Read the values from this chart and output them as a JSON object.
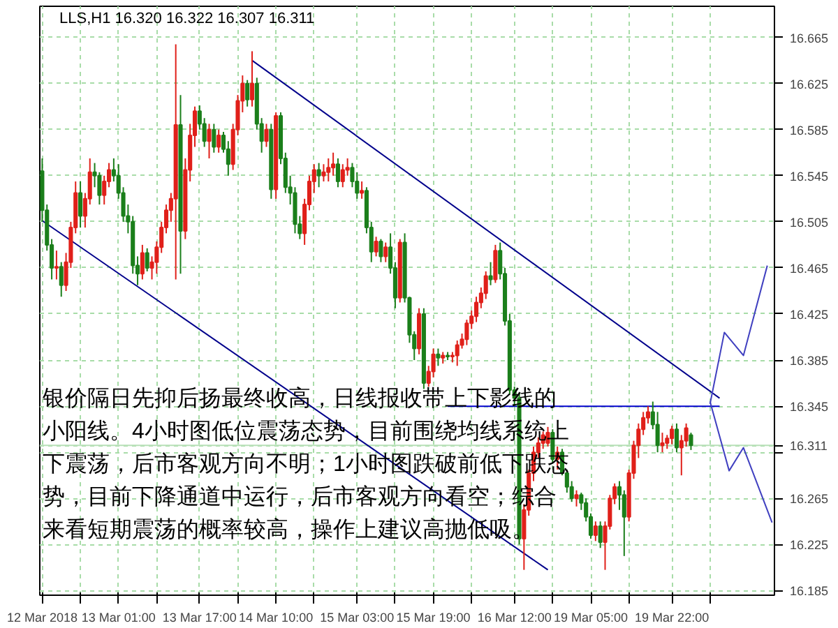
{
  "chart_data": {
    "type": "candlestick",
    "title": "LLS,H1  16.320 16.322 16.307 16.311",
    "annotations": [
      "银价隔日先抑后扬最终收高，日线报收带上下影线的",
      "小阳线。4小时图低位震荡态势，目前围绕均线系统上",
      "下震荡，后市客观方向不明；1小时图跌破前低下跌态",
      "势，目前下降通道中运行，后市客观方向看空；综合",
      "来看短期震荡的概率较高，操作上建议高抛低吸。"
    ],
    "categories": [
      "12 Mar 2018",
      null,
      null,
      null,
      null,
      null,
      null,
      null,
      null,
      null,
      null,
      null,
      null,
      null,
      null,
      null,
      "13 Mar 01:00",
      null,
      null,
      null,
      null,
      null,
      null,
      null,
      null,
      null,
      null,
      null,
      null,
      null,
      null,
      null,
      null,
      "13 Mar 17:00",
      null,
      null,
      null,
      null,
      null,
      null,
      null,
      null,
      null,
      null,
      null,
      null,
      null,
      null,
      null,
      "14 Mar 10:00",
      null,
      null,
      null,
      null,
      null,
      null,
      null,
      null,
      null,
      null,
      null,
      null,
      null,
      null,
      null,
      null,
      "15 Mar 03:00",
      null,
      null,
      null,
      null,
      null,
      null,
      null,
      null,
      null,
      null,
      null,
      null,
      null,
      null,
      null,
      "15 Mar 19:00",
      null,
      null,
      null,
      null,
      null,
      null,
      null,
      null,
      null,
      null,
      null,
      null,
      null,
      null,
      null,
      null,
      "16 Mar 12:00",
      null,
      null,
      null,
      null,
      null,
      null,
      null,
      null,
      null,
      null,
      null,
      null,
      null,
      null,
      null,
      "19 Mar 05:00",
      null,
      null,
      null,
      null,
      null,
      null,
      null,
      null,
      null,
      null,
      null,
      null,
      null,
      null,
      null,
      null,
      "19 Mar 22:00",
      null,
      null,
      null,
      null,
      null,
      null,
      null,
      null,
      null,
      null,
      null,
      null,
      null,
      null,
      null,
      null,
      null,
      null,
      null,
      null,
      null
    ],
    "ohlc": [
      [
        16.549,
        16.56,
        16.505,
        16.515
      ],
      [
        16.515,
        16.52,
        16.48,
        16.485
      ],
      [
        16.485,
        16.49,
        16.455,
        16.465
      ],
      [
        16.465,
        16.48,
        16.455,
        16.466
      ],
      [
        16.466,
        16.47,
        16.44,
        16.45
      ],
      [
        16.45,
        16.478,
        16.445,
        16.47
      ],
      [
        16.47,
        16.505,
        16.465,
        16.5
      ],
      [
        16.5,
        16.54,
        16.495,
        16.53
      ],
      [
        16.53,
        16.54,
        16.5,
        16.51
      ],
      [
        16.51,
        16.53,
        16.5,
        16.525
      ],
      [
        16.525,
        16.56,
        16.52,
        16.548
      ],
      [
        16.548,
        16.556,
        16.535,
        16.545
      ],
      [
        16.545,
        16.548,
        16.52,
        16.528
      ],
      [
        16.528,
        16.545,
        16.52,
        16.54
      ],
      [
        16.54,
        16.556,
        16.535,
        16.55
      ],
      [
        16.55,
        16.56,
        16.54,
        16.545
      ],
      [
        16.545,
        16.555,
        16.525,
        16.53
      ],
      [
        16.53,
        16.535,
        16.505,
        16.51
      ],
      [
        16.51,
        16.52,
        16.495,
        16.505
      ],
      [
        16.505,
        16.51,
        16.46,
        16.467
      ],
      [
        16.467,
        16.475,
        16.45,
        16.46
      ],
      [
        16.46,
        16.485,
        16.455,
        16.478
      ],
      [
        16.478,
        16.482,
        16.462,
        16.465
      ],
      [
        16.465,
        16.475,
        16.455,
        16.47
      ],
      [
        16.47,
        16.488,
        16.46,
        16.483
      ],
      [
        16.483,
        16.505,
        16.478,
        16.5
      ],
      [
        16.5,
        16.52,
        16.495,
        16.515
      ],
      [
        16.515,
        16.53,
        16.505,
        16.525
      ],
      [
        16.525,
        16.659,
        16.455,
        16.589
      ],
      [
        16.589,
        16.615,
        16.46,
        16.497
      ],
      [
        16.497,
        16.56,
        16.49,
        16.55
      ],
      [
        16.55,
        16.59,
        16.54,
        16.58
      ],
      [
        16.58,
        16.605,
        16.57,
        16.601
      ],
      [
        16.601,
        16.606,
        16.585,
        16.59
      ],
      [
        16.59,
        16.595,
        16.57,
        16.575
      ],
      [
        16.575,
        16.59,
        16.56,
        16.585
      ],
      [
        16.585,
        16.59,
        16.565,
        16.57
      ],
      [
        16.57,
        16.585,
        16.565,
        16.58
      ],
      [
        16.58,
        16.583,
        16.565,
        16.568
      ],
      [
        16.568,
        16.575,
        16.545,
        16.555
      ],
      [
        16.555,
        16.59,
        16.55,
        16.585
      ],
      [
        16.585,
        16.615,
        16.58,
        16.61
      ],
      [
        16.61,
        16.632,
        16.6,
        16.625
      ],
      [
        16.625,
        16.628,
        16.605,
        16.611
      ],
      [
        16.611,
        16.653,
        16.605,
        16.625
      ],
      [
        16.625,
        16.63,
        16.585,
        16.59
      ],
      [
        16.59,
        16.595,
        16.565,
        16.575
      ],
      [
        16.575,
        16.59,
        16.57,
        16.585
      ],
      [
        16.585,
        16.59,
        16.525,
        16.533
      ],
      [
        16.533,
        16.6,
        16.525,
        16.597
      ],
      [
        16.597,
        16.6,
        16.555,
        16.56
      ],
      [
        16.56,
        16.565,
        16.53,
        16.535
      ],
      [
        16.535,
        16.545,
        16.52,
        16.53
      ],
      [
        16.53,
        16.535,
        16.495,
        16.503
      ],
      [
        16.503,
        16.51,
        16.49,
        16.495
      ],
      [
        16.495,
        16.525,
        16.485,
        16.52
      ],
      [
        16.52,
        16.545,
        16.515,
        16.54
      ],
      [
        16.54,
        16.555,
        16.53,
        16.55
      ],
      [
        16.55,
        16.556,
        16.535,
        16.545
      ],
      [
        16.545,
        16.555,
        16.54,
        16.548
      ],
      [
        16.548,
        16.56,
        16.54,
        16.552
      ],
      [
        16.552,
        16.565,
        16.545,
        16.555
      ],
      [
        16.555,
        16.56,
        16.535,
        16.54
      ],
      [
        16.54,
        16.555,
        16.535,
        16.55
      ],
      [
        16.55,
        16.56,
        16.545,
        16.552
      ],
      [
        16.552,
        16.556,
        16.535,
        16.54
      ],
      [
        16.54,
        16.548,
        16.525,
        16.53
      ],
      [
        16.53,
        16.54,
        16.525,
        16.532
      ],
      [
        16.532,
        16.535,
        16.495,
        16.5
      ],
      [
        16.5,
        16.505,
        16.47,
        16.479
      ],
      [
        16.479,
        16.492,
        16.475,
        16.488
      ],
      [
        16.488,
        16.49,
        16.47,
        16.475
      ],
      [
        16.475,
        16.487,
        16.47,
        16.483
      ],
      [
        16.483,
        16.495,
        16.46,
        16.465
      ],
      [
        16.465,
        16.47,
        16.43,
        16.439
      ],
      [
        16.439,
        16.49,
        16.435,
        16.487
      ],
      [
        16.487,
        16.495,
        16.435,
        16.439
      ],
      [
        16.439,
        16.44,
        16.4,
        16.407
      ],
      [
        16.407,
        16.41,
        16.385,
        16.395
      ],
      [
        16.395,
        16.43,
        16.39,
        16.425
      ],
      [
        16.425,
        16.43,
        16.36,
        16.365
      ],
      [
        16.365,
        16.38,
        16.362,
        16.375
      ],
      [
        16.375,
        16.395,
        16.37,
        16.39
      ],
      [
        16.39,
        16.395,
        16.38,
        16.387
      ],
      [
        16.387,
        16.392,
        16.382,
        16.389
      ],
      [
        16.389,
        16.392,
        16.385,
        16.388
      ],
      [
        16.388,
        16.392,
        16.383,
        16.389
      ],
      [
        16.389,
        16.402,
        16.38,
        16.398
      ],
      [
        16.398,
        16.408,
        16.395,
        16.403
      ],
      [
        16.403,
        16.42,
        16.398,
        16.417
      ],
      [
        16.417,
        16.428,
        16.412,
        16.423
      ],
      [
        16.423,
        16.44,
        16.418,
        16.435
      ],
      [
        16.435,
        16.448,
        16.43,
        16.443
      ],
      [
        16.443,
        16.462,
        16.438,
        16.458
      ],
      [
        16.458,
        16.47,
        16.45,
        16.455
      ],
      [
        16.455,
        16.485,
        16.452,
        16.48
      ],
      [
        16.48,
        16.487,
        16.455,
        16.46
      ],
      [
        16.46,
        16.465,
        16.415,
        16.419
      ],
      [
        16.419,
        16.425,
        16.355,
        16.359
      ],
      [
        16.359,
        16.362,
        16.345,
        16.352
      ],
      [
        16.352,
        16.356,
        16.225,
        16.23
      ],
      [
        16.23,
        16.26,
        16.203,
        16.255
      ],
      [
        16.255,
        16.29,
        16.25,
        16.287
      ],
      [
        16.287,
        16.31,
        16.28,
        16.305
      ],
      [
        16.305,
        16.318,
        16.3,
        16.313
      ],
      [
        16.313,
        16.323,
        16.308,
        16.32
      ],
      [
        16.313,
        16.327,
        16.31,
        16.322
      ],
      [
        16.322,
        16.325,
        16.296,
        16.299
      ],
      [
        16.299,
        16.31,
        16.29,
        16.305
      ],
      [
        16.305,
        16.308,
        16.285,
        16.287
      ],
      [
        16.287,
        16.29,
        16.27,
        16.275
      ],
      [
        16.275,
        16.28,
        16.262,
        16.265
      ],
      [
        16.265,
        16.272,
        16.258,
        16.268
      ],
      [
        16.268,
        16.27,
        16.255,
        16.261
      ],
      [
        16.261,
        16.265,
        16.245,
        16.249
      ],
      [
        16.249,
        16.252,
        16.23,
        16.233
      ],
      [
        16.233,
        16.245,
        16.228,
        16.241
      ],
      [
        16.241,
        16.245,
        16.222,
        16.227
      ],
      [
        16.227,
        16.245,
        16.203,
        16.241
      ],
      [
        16.241,
        16.268,
        16.238,
        16.265
      ],
      [
        16.265,
        16.278,
        16.26,
        16.275
      ],
      [
        16.275,
        16.28,
        16.255,
        16.268
      ],
      [
        16.268,
        16.272,
        16.215,
        16.249
      ],
      [
        16.249,
        16.29,
        16.245,
        16.287
      ],
      [
        16.287,
        16.315,
        16.282,
        16.311
      ],
      [
        16.311,
        16.33,
        16.3,
        16.325
      ],
      [
        16.325,
        16.34,
        16.32,
        16.335
      ],
      [
        16.335,
        16.345,
        16.33,
        16.34
      ],
      [
        16.34,
        16.349,
        16.325,
        16.329
      ],
      [
        16.329,
        16.34,
        16.305,
        16.311
      ],
      [
        16.311,
        16.322,
        16.305,
        16.313
      ],
      [
        16.313,
        16.32,
        16.308,
        16.317
      ],
      [
        16.317,
        16.328,
        16.312,
        16.325
      ],
      [
        16.325,
        16.33,
        16.305,
        16.309
      ],
      [
        16.309,
        16.32,
        16.285,
        16.315
      ],
      [
        16.315,
        16.33,
        16.31,
        16.326
      ],
      [
        16.32,
        16.322,
        16.307,
        16.311
      ],
      null,
      null,
      null,
      null,
      null,
      null,
      null,
      null,
      null,
      null,
      null,
      null,
      null,
      null,
      null,
      null,
      null
    ],
    "series": [
      {
        "type": "line",
        "color": "#00008b",
        "values": [
          null,
          null,
          null,
          null,
          null,
          null,
          null,
          null,
          null,
          null,
          null,
          null,
          null,
          null,
          null,
          null,
          null,
          null,
          null,
          null,
          null,
          null,
          null,
          null,
          null,
          null,
          null,
          null,
          null,
          null,
          null,
          null,
          null,
          null,
          null,
          null,
          null,
          null,
          null,
          null,
          null,
          null,
          null,
          null,
          16.645,
          null,
          null,
          null,
          null,
          null,
          null,
          null,
          null,
          null,
          null,
          null,
          null,
          null,
          null,
          null,
          null,
          null,
          null,
          null,
          null,
          null,
          null,
          null,
          null,
          null,
          null,
          null,
          null,
          null,
          null,
          null,
          null,
          null,
          null,
          null,
          null,
          null,
          null,
          null,
          null,
          null,
          null,
          null,
          null,
          null,
          null,
          null,
          null,
          null,
          null,
          null,
          null,
          null,
          null,
          null,
          null,
          null,
          null,
          null,
          null,
          null,
          null,
          null,
          null,
          null,
          null,
          null,
          null,
          null,
          null,
          null,
          null,
          null,
          null,
          null,
          null,
          null,
          null,
          null,
          null,
          null,
          null,
          null,
          null,
          null,
          null,
          null,
          null,
          null,
          null,
          null,
          null,
          null,
          null,
          null,
          null,
          null,
          16.352,
          null,
          null,
          null,
          null,
          null,
          null,
          null,
          null,
          null,
          null,
          null
        ]
      },
      {
        "type": "line",
        "color": "#00008b",
        "values": [
          16.506,
          null,
          null,
          null,
          null,
          null,
          null,
          null,
          null,
          null,
          null,
          null,
          null,
          null,
          null,
          null,
          null,
          null,
          null,
          null,
          null,
          null,
          null,
          null,
          null,
          null,
          null,
          null,
          null,
          null,
          null,
          null,
          null,
          null,
          null,
          null,
          null,
          null,
          null,
          null,
          null,
          null,
          null,
          null,
          null,
          null,
          null,
          null,
          null,
          null,
          null,
          null,
          null,
          null,
          null,
          null,
          null,
          null,
          null,
          null,
          null,
          null,
          null,
          null,
          null,
          null,
          null,
          null,
          null,
          null,
          null,
          null,
          null,
          null,
          null,
          null,
          null,
          null,
          null,
          null,
          null,
          null,
          null,
          null,
          null,
          null,
          null,
          null,
          null,
          null,
          null,
          null,
          null,
          null,
          null,
          null,
          null,
          null,
          null,
          null,
          null,
          null,
          null,
          null,
          null,
          null,
          16.203,
          null,
          null,
          null,
          null,
          null,
          null,
          null,
          null,
          null,
          null,
          null,
          null,
          null,
          null,
          null,
          null,
          null,
          null,
          null,
          null,
          null,
          null,
          null,
          null,
          null,
          null,
          null,
          null,
          null,
          null,
          null,
          null,
          null,
          null,
          null,
          null,
          null,
          null,
          null,
          null,
          null,
          null,
          null,
          null,
          null,
          null,
          null
        ]
      },
      {
        "type": "line",
        "color": "#0000cd",
        "values": [
          null,
          null,
          null,
          null,
          null,
          null,
          null,
          null,
          null,
          null,
          null,
          null,
          null,
          null,
          null,
          null,
          null,
          null,
          null,
          null,
          null,
          null,
          null,
          null,
          null,
          null,
          null,
          null,
          null,
          null,
          null,
          null,
          null,
          null,
          null,
          null,
          null,
          null,
          null,
          null,
          null,
          null,
          null,
          null,
          null,
          null,
          null,
          null,
          null,
          null,
          null,
          null,
          null,
          null,
          null,
          null,
          null,
          null,
          null,
          null,
          null,
          null,
          null,
          null,
          null,
          null,
          null,
          null,
          null,
          null,
          null,
          null,
          null,
          null,
          null,
          null,
          null,
          null,
          null,
          null,
          null,
          null,
          null,
          null,
          null,
          16.345,
          null,
          null,
          null,
          null,
          null,
          null,
          null,
          null,
          null,
          null,
          null,
          null,
          null,
          null,
          null,
          null,
          null,
          null,
          null,
          null,
          null,
          null,
          null,
          null,
          null,
          null,
          null,
          null,
          null,
          null,
          null,
          null,
          null,
          null,
          null,
          null,
          null,
          null,
          null,
          null,
          null,
          null,
          null,
          null,
          null,
          null,
          null,
          null,
          null,
          null,
          null,
          null,
          null,
          null,
          null,
          null,
          16.345,
          null,
          null,
          null,
          null,
          null,
          null,
          null,
          null,
          null,
          null,
          null
        ]
      },
      {
        "type": "line",
        "color": "#4040c0",
        "values": [
          null,
          null,
          null,
          null,
          null,
          null,
          null,
          null,
          null,
          null,
          null,
          null,
          null,
          null,
          null,
          null,
          null,
          null,
          null,
          null,
          null,
          null,
          null,
          null,
          null,
          null,
          null,
          null,
          null,
          null,
          null,
          null,
          null,
          null,
          null,
          null,
          null,
          null,
          null,
          null,
          null,
          null,
          null,
          null,
          null,
          null,
          null,
          null,
          null,
          null,
          null,
          null,
          null,
          null,
          null,
          null,
          null,
          null,
          null,
          null,
          null,
          null,
          null,
          null,
          null,
          null,
          null,
          null,
          null,
          null,
          null,
          null,
          null,
          null,
          null,
          null,
          null,
          null,
          null,
          null,
          null,
          null,
          null,
          null,
          null,
          null,
          null,
          null,
          null,
          null,
          null,
          null,
          null,
          null,
          null,
          null,
          null,
          null,
          null,
          null,
          null,
          null,
          null,
          null,
          null,
          null,
          null,
          null,
          null,
          null,
          null,
          null,
          null,
          null,
          null,
          null,
          null,
          null,
          null,
          null,
          null,
          null,
          null,
          null,
          null,
          null,
          null,
          null,
          null,
          null,
          null,
          null,
          null,
          null,
          null,
          null,
          null,
          null,
          null,
          null,
          16.347,
          null,
          null,
          16.409,
          null,
          null,
          null,
          16.389,
          null,
          null,
          null,
          null,
          16.467,
          null
        ]
      },
      {
        "type": "line",
        "color": "#4040c0",
        "values": [
          null,
          null,
          null,
          null,
          null,
          null,
          null,
          null,
          null,
          null,
          null,
          null,
          null,
          null,
          null,
          null,
          null,
          null,
          null,
          null,
          null,
          null,
          null,
          null,
          null,
          null,
          null,
          null,
          null,
          null,
          null,
          null,
          null,
          null,
          null,
          null,
          null,
          null,
          null,
          null,
          null,
          null,
          null,
          null,
          null,
          null,
          null,
          null,
          null,
          null,
          null,
          null,
          null,
          null,
          null,
          null,
          null,
          null,
          null,
          null,
          null,
          null,
          null,
          null,
          null,
          null,
          null,
          null,
          null,
          null,
          null,
          null,
          null,
          null,
          null,
          null,
          null,
          null,
          null,
          null,
          null,
          null,
          null,
          null,
          null,
          null,
          null,
          null,
          null,
          null,
          null,
          null,
          null,
          null,
          null,
          null,
          null,
          null,
          null,
          null,
          null,
          null,
          null,
          null,
          null,
          null,
          null,
          null,
          null,
          null,
          null,
          null,
          null,
          null,
          null,
          null,
          null,
          null,
          null,
          null,
          null,
          null,
          null,
          null,
          null,
          null,
          null,
          null,
          null,
          null,
          null,
          null,
          null,
          null,
          null,
          null,
          null,
          null,
          null,
          null,
          16.349,
          null,
          null,
          null,
          16.289,
          null,
          null,
          16.309,
          null,
          null,
          null,
          null,
          null,
          16.244
        ]
      }
    ],
    "ref_lines": [
      {
        "axis": "y",
        "value": 16.311,
        "label": "16.311",
        "color": "#b8e0b8"
      }
    ],
    "ylim": [
      16.181,
      16.692
    ],
    "yticks": [
      16.665,
      16.625,
      16.585,
      16.545,
      16.505,
      16.465,
      16.425,
      16.385,
      16.345,
      {
        "value": 16.305,
        "label": null
      },
      16.265,
      16.225,
      16.185
    ],
    "grid": true
  }
}
